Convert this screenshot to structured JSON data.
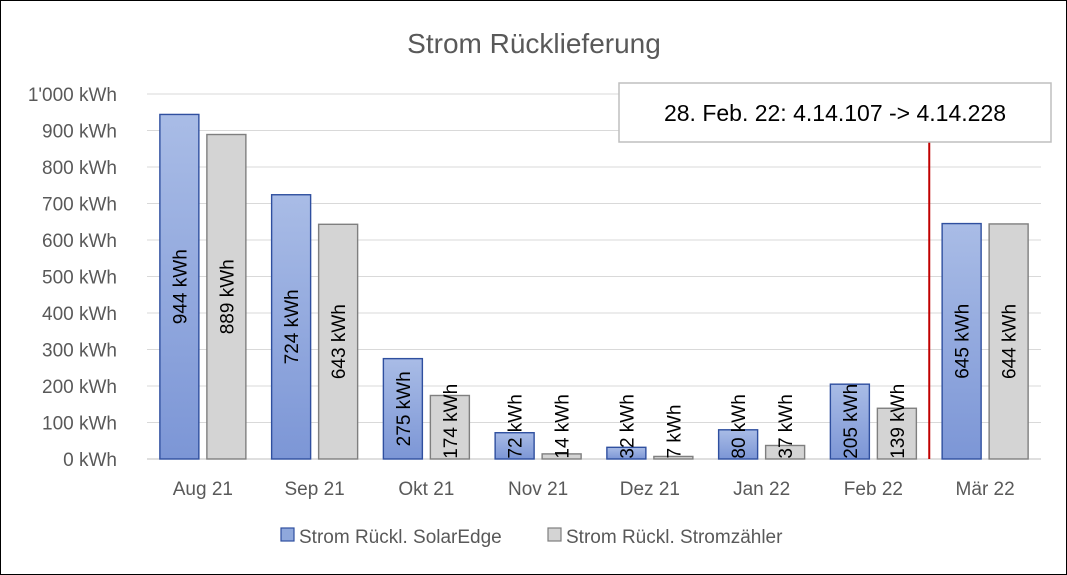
{
  "chart_data": {
    "type": "bar",
    "title": "Strom Rücklieferung",
    "categories": [
      "Aug 21",
      "Sep 21",
      "Okt 21",
      "Nov 21",
      "Dez 21",
      "Jan 22",
      "Feb 22",
      "Mär 22"
    ],
    "series": [
      {
        "name": "Strom Rückl. SolarEdge",
        "values": [
          944,
          724,
          275,
          72,
          32,
          80,
          205,
          645
        ],
        "labels": [
          "944 kWh",
          "724 kWh",
          "275 kWh",
          "72 kWh",
          "32 kWh",
          "80 kWh",
          "205 kWh",
          "645 kWh"
        ],
        "color": "#8FA8DC",
        "border": "#2F4F9F"
      },
      {
        "name": "Strom Rückl. Stromzähler",
        "values": [
          889,
          643,
          174,
          14,
          7,
          37,
          139,
          644
        ],
        "labels": [
          "889 kWh",
          "643 kWh",
          "174 kWh",
          "14 kWh",
          "7 kWh",
          "37 kWh",
          "139 kWh",
          "644 kWh"
        ],
        "color": "#D4D4D4",
        "border": "#7F7F7F"
      }
    ],
    "ylim": [
      0,
      1000
    ],
    "yticks": [
      0,
      100,
      200,
      300,
      400,
      500,
      600,
      700,
      800,
      900,
      1000
    ],
    "ytick_labels": [
      "0 kWh",
      "100 kWh",
      "200 kWh",
      "300 kWh",
      "400 kWh",
      "500 kWh",
      "600 kWh",
      "700 kWh",
      "800 kWh",
      "900 kWh",
      "1'000 kWh"
    ],
    "xlabel": "",
    "ylabel": "",
    "grid": true,
    "legend": "bottom",
    "marker_line": {
      "between": [
        "Feb 22",
        "Mär 22"
      ],
      "color": "#C00000"
    },
    "annotation": "28. Feb. 22: 4.14.107 -> 4.14.228"
  }
}
